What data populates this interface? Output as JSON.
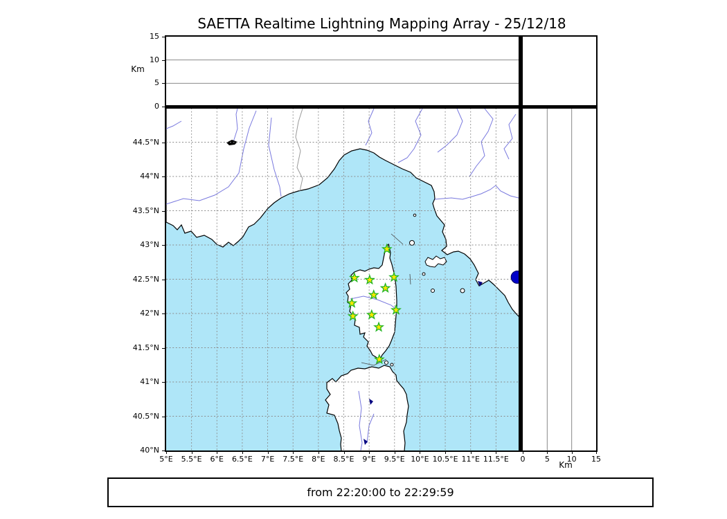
{
  "title": "SAETTA Realtime Lightning Mapping Array - 25/12/18",
  "time_range": {
    "text": "from 22:20:00 to 22:29:59"
  },
  "altitude_axis": {
    "unit_label": "Km",
    "max": 15,
    "ticks": [
      {
        "v": 0,
        "label": "0"
      },
      {
        "v": 5,
        "label": "5"
      },
      {
        "v": 10,
        "label": "10"
      },
      {
        "v": 15,
        "label": "15"
      }
    ],
    "gridlines": [
      5,
      10
    ]
  },
  "map": {
    "lon_range": [
      5,
      12
    ],
    "lat_range": [
      40,
      45
    ],
    "lon_ticks": [
      {
        "v": 5,
        "label": "5°E"
      },
      {
        "v": 5.5,
        "label": "5.5°E"
      },
      {
        "v": 6,
        "label": "6°E"
      },
      {
        "v": 6.5,
        "label": "6.5°E"
      },
      {
        "v": 7,
        "label": "7°E"
      },
      {
        "v": 7.5,
        "label": "7.5°E"
      },
      {
        "v": 8,
        "label": "8°E"
      },
      {
        "v": 8.5,
        "label": "8.5°E"
      },
      {
        "v": 9,
        "label": "9°E"
      },
      {
        "v": 9.5,
        "label": "9.5°E"
      },
      {
        "v": 10,
        "label": "10°E"
      },
      {
        "v": 10.5,
        "label": "10.5°E"
      },
      {
        "v": 11,
        "label": "11°E"
      },
      {
        "v": 11.5,
        "label": "11.5°E"
      }
    ],
    "lat_ticks": [
      {
        "v": 44.5,
        "label": "44.5°N"
      },
      {
        "v": 44,
        "label": "44°N"
      },
      {
        "v": 43.5,
        "label": "43.5°N"
      },
      {
        "v": 43,
        "label": "43°N"
      },
      {
        "v": 42.5,
        "label": "42.5°N"
      },
      {
        "v": 42,
        "label": "42°N"
      },
      {
        "v": 41.5,
        "label": "41.5°N"
      },
      {
        "v": 41,
        "label": "41°N"
      },
      {
        "v": 40.5,
        "label": "40.5°N"
      },
      {
        "v": 40,
        "label": "40°N"
      }
    ],
    "stations": [
      [
        9.35,
        42.94
      ],
      [
        8.71,
        42.52
      ],
      [
        9.01,
        42.49
      ],
      [
        9.49,
        42.53
      ],
      [
        9.32,
        42.37
      ],
      [
        9.09,
        42.27
      ],
      [
        8.66,
        42.15
      ],
      [
        9.53,
        42.05
      ],
      [
        8.68,
        41.96
      ],
      [
        9.05,
        41.98
      ],
      [
        9.19,
        41.8
      ],
      [
        9.2,
        41.33
      ]
    ],
    "events": [
      [
        11.92,
        42.53
      ]
    ]
  },
  "colors": {
    "sea": "#AFE6F8",
    "land": "#FFFFFF",
    "coastline": "#000000",
    "river": "#7878DE",
    "country_border": "#999999",
    "grid": "#8C8C8C",
    "station_fill": "#FFE800",
    "station_edge": "#22B422",
    "event_fill": "#0000C8",
    "lake_navy": "#000080"
  },
  "chart_data": {
    "type": "scatter",
    "title": "SAETTA Realtime Lightning Mapping Array - 25/12/18",
    "x_range_lon_deg_E": [
      5,
      12
    ],
    "y_range_lat_deg_N": [
      40,
      45
    ],
    "altitude_km_range": [
      0,
      15
    ],
    "altitude_ticks_km": [
      0,
      5,
      10,
      15
    ],
    "series": [
      {
        "name": "LMA stations",
        "marker": "star",
        "points_lon_lat": [
          [
            9.35,
            42.94
          ],
          [
            8.71,
            42.52
          ],
          [
            9.01,
            42.49
          ],
          [
            9.49,
            42.53
          ],
          [
            9.32,
            42.37
          ],
          [
            9.09,
            42.27
          ],
          [
            8.66,
            42.15
          ],
          [
            9.53,
            42.05
          ],
          [
            8.68,
            41.96
          ],
          [
            9.05,
            41.98
          ],
          [
            9.19,
            41.8
          ],
          [
            9.2,
            41.33
          ]
        ]
      },
      {
        "name": "lightning source",
        "marker": "circle",
        "points_lon_lat": [
          [
            11.92,
            42.53
          ]
        ]
      }
    ],
    "time_window": "from 22:20:00 to 22:29:59"
  }
}
